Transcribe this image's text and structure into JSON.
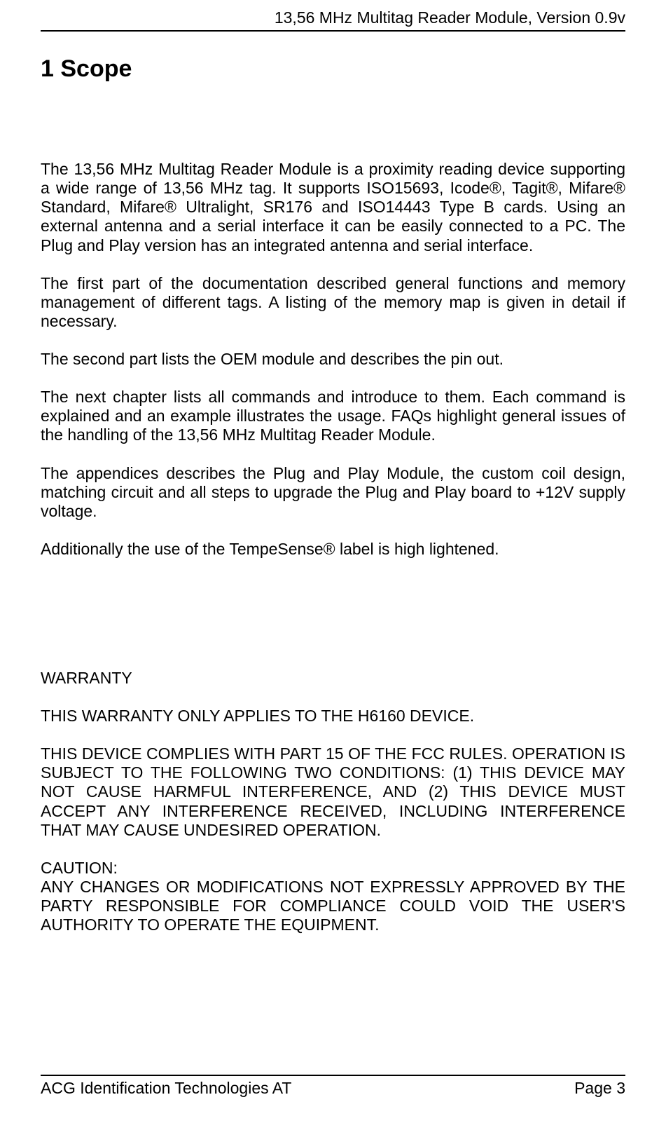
{
  "header": {
    "title": "13,56 MHz Multitag Reader Module, Version 0.9v"
  },
  "section": {
    "heading": "1 Scope"
  },
  "body": {
    "p1": "The 13,56 MHz Multitag Reader Module is a proximity reading device supporting a wide range of 13,56 MHz tag. It supports ISO15693, Icode®, Tagit®, Mifare® Standard, Mifare® Ultralight, SR176 and ISO14443 Type B cards. Using an external antenna and a serial interface it can be easily connected to a PC. The Plug and Play version has an integrated antenna and serial interface.",
    "p2": "The first part of the documentation described general functions and memory management of different tags. A listing of the memory map is given in detail if necessary.",
    "p3": "The second part lists the OEM module and describes the pin out.",
    "p4": "The next chapter lists all commands and introduce to them. Each command is explained and an example illustrates the usage. FAQs highlight general issues of the handling of the 13,56 MHz Multitag Reader Module.",
    "p5": "The appendices describes the Plug and Play Module, the custom coil design, matching circuit and all steps to upgrade the Plug and Play board to +12V supply voltage.",
    "p6": "Additionally the use of the TempeSense® label is high lightened."
  },
  "warranty": {
    "title": "WARRANTY",
    "p1": "THIS WARRANTY ONLY APPLIES TO THE H6160 DEVICE.",
    "p2": "THIS DEVICE COMPLIES WITH PART 15 OF THE FCC RULES. OPERATION IS SUBJECT TO THE FOLLOWING TWO CONDITIONS: (1) THIS DEVICE MAY NOT CAUSE HARMFUL INTERFERENCE, AND (2) THIS DEVICE MUST ACCEPT ANY INTERFERENCE RECEIVED, INCLUDING INTERFERENCE THAT MAY CAUSE UNDESIRED OPERATION.",
    "p3a": "CAUTION:",
    "p3b": "ANY CHANGES OR MODIFICATIONS NOT EXPRESSLY APPROVED BY THE PARTY RESPONSIBLE FOR COMPLIANCE COULD VOID THE USER'S AUTHORITY TO OPERATE THE EQUIPMENT."
  },
  "footer": {
    "left": "ACG Identification Technologies AT",
    "right": "Page 3"
  }
}
